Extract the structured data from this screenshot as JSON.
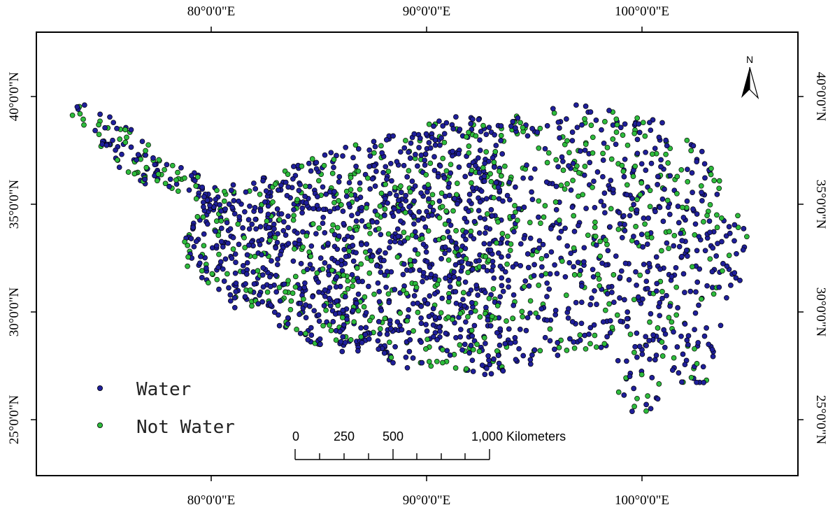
{
  "map": {
    "lon_labels": [
      {
        "lon": 80,
        "text": "80°0'0\"E"
      },
      {
        "lon": 90,
        "text": "90°0'0\"E"
      },
      {
        "lon": 100,
        "text": "100°0'0\"E"
      }
    ],
    "lat_labels": [
      {
        "lat": 40,
        "text": "40°0'0\"N"
      },
      {
        "lat": 35,
        "text": "35°0'0\"N"
      },
      {
        "lat": 30,
        "text": "30°0'0\"N"
      },
      {
        "lat": 25,
        "text": "25°0'0\"N"
      }
    ],
    "extent": {
      "lon_min": 72,
      "lon_max": 107,
      "lat_min": 23,
      "lat_max": 43
    }
  },
  "legend": {
    "items": [
      {
        "label": "Water",
        "color": "#1f1f9a"
      },
      {
        "label": "Not Water",
        "color": "#2dbb3c"
      }
    ]
  },
  "scale_bar": {
    "labels": [
      "0",
      "250",
      "500",
      "1,000 Kilometers"
    ],
    "values_km": [
      0,
      250,
      500,
      1000
    ]
  },
  "north_arrow": {
    "label": "N"
  },
  "colors": {
    "water": "#1f1f9a",
    "not_water": "#2dbb3c",
    "outline": "#000000"
  },
  "icons": {
    "north": "north-arrow-icon"
  }
}
